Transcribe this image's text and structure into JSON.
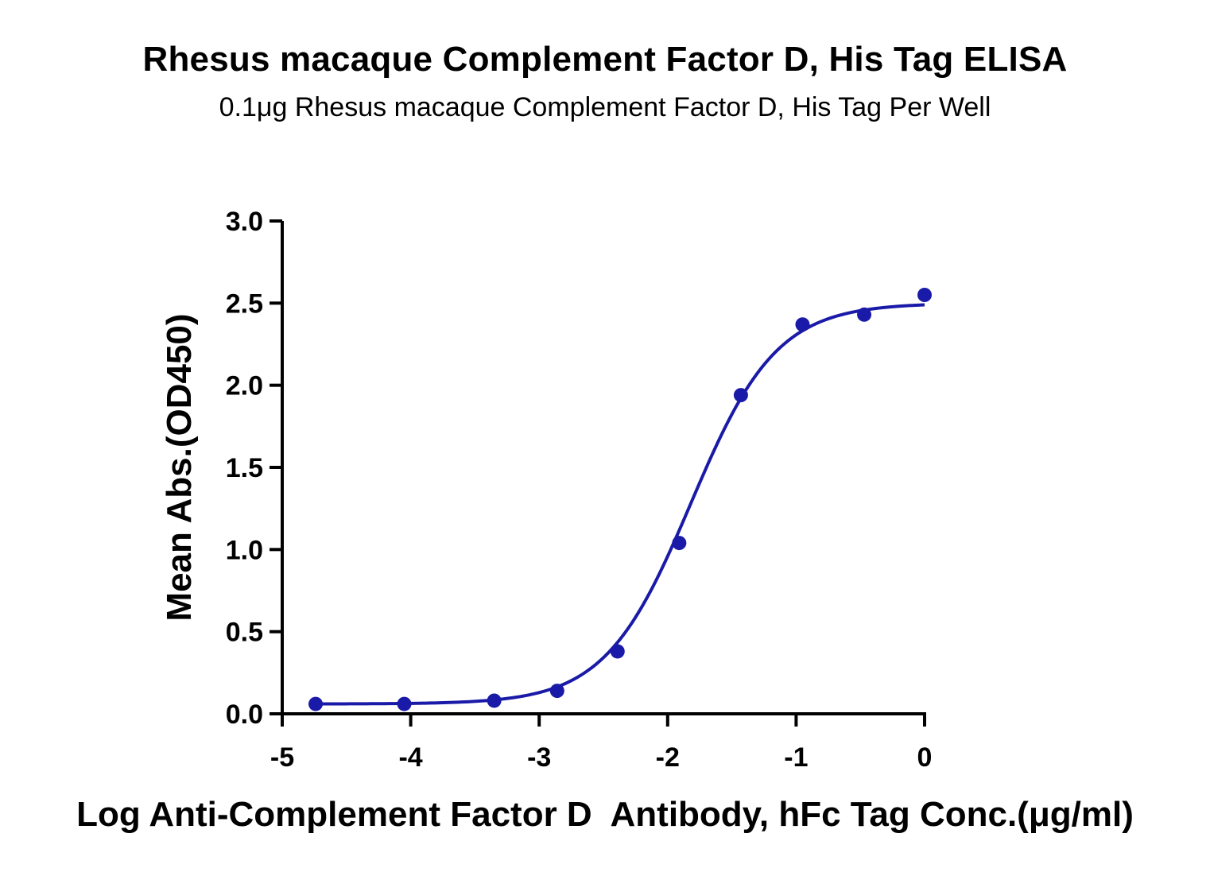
{
  "chart_data": {
    "type": "scatter",
    "title": "Rhesus macaque Complement Factor D, His Tag ELISA",
    "subtitle": "0.1μg Rhesus macaque Complement Factor D, His Tag Per Well",
    "xlabel": "Log Anti-Complement Factor D  Antibody, hFc Tag Conc.(μg/ml)",
    "ylabel": "Mean Abs.(OD450)",
    "xlim": [
      -5,
      0
    ],
    "ylim": [
      0,
      3.0
    ],
    "x_ticks": [
      "-5",
      "-4",
      "-3",
      "-2",
      "-1",
      "0"
    ],
    "y_ticks": [
      "0.0",
      "0.5",
      "1.0",
      "1.5",
      "2.0",
      "2.5",
      "3.0"
    ],
    "grid": false,
    "color": "#1a1aa8",
    "series": [
      {
        "points": [
          {
            "x": -4.74,
            "y": 0.06
          },
          {
            "x": -4.05,
            "y": 0.06
          },
          {
            "x": -3.35,
            "y": 0.08
          },
          {
            "x": -2.86,
            "y": 0.14
          },
          {
            "x": -2.39,
            "y": 0.38
          },
          {
            "x": -1.91,
            "y": 1.04
          },
          {
            "x": -1.43,
            "y": 1.94
          },
          {
            "x": -0.95,
            "y": 2.37
          },
          {
            "x": -0.47,
            "y": 2.43
          },
          {
            "x": 0.0,
            "y": 2.55
          }
        ],
        "fit": {
          "model": "4PL",
          "bottom": 0.06,
          "top": 2.5,
          "logEC50": -1.82,
          "hill": 1.3
        }
      }
    ]
  }
}
